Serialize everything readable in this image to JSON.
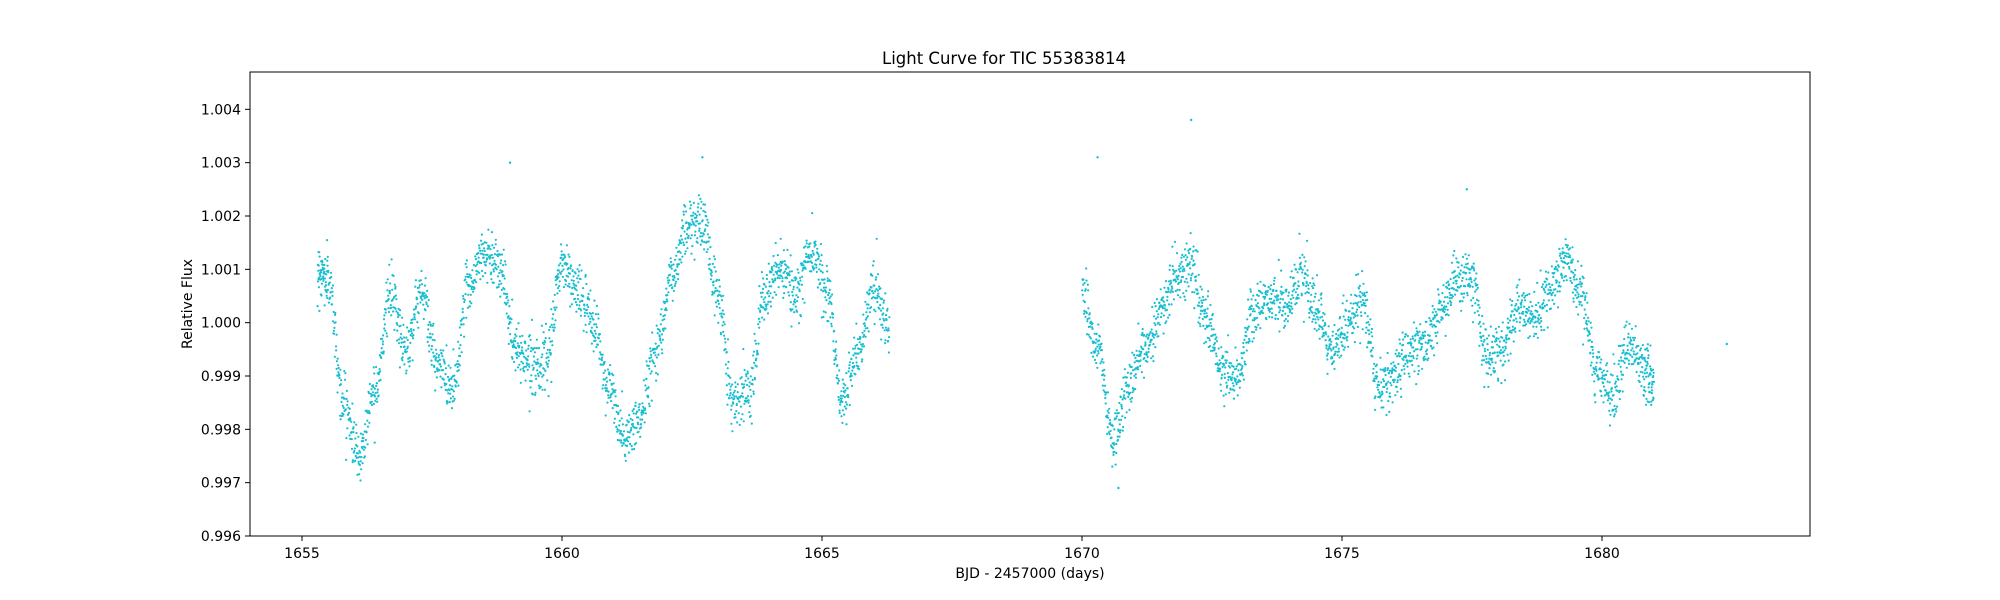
{
  "chart_data": {
    "type": "scatter",
    "title": "Light Curve for TIC 55383814",
    "xlabel": "BJD - 2457000 (days)",
    "ylabel": "Relative Flux",
    "xlim": [
      1654,
      1684
    ],
    "ylim": [
      0.996,
      1.0047
    ],
    "xticks": [
      1655,
      1660,
      1665,
      1670,
      1675,
      1680
    ],
    "xtick_labels": [
      "1655",
      "1660",
      "1665",
      "1670",
      "1675",
      "1680"
    ],
    "yticks": [
      0.996,
      0.997,
      0.998,
      0.999,
      1.0,
      1.001,
      1.002,
      1.003,
      1.004
    ],
    "ytick_labels": [
      "0.996",
      "0.997",
      "0.998",
      "0.999",
      "1.000",
      "1.001",
      "1.002",
      "1.003",
      "1.004"
    ],
    "grid": false,
    "legend": "none",
    "marker_color": "#17becf",
    "series": [
      {
        "trend_x": [
          1655.3,
          1655.5,
          1655.8,
          1656.1,
          1656.4,
          1656.7,
          1657.0,
          1657.3,
          1657.6,
          1657.9,
          1658.2,
          1658.5,
          1658.8,
          1659.1,
          1659.4,
          1659.7,
          1660.0,
          1660.3,
          1660.6,
          1660.9,
          1661.2,
          1661.5,
          1661.8,
          1662.1,
          1662.4,
          1662.7,
          1663.0,
          1663.3,
          1663.6,
          1663.9,
          1664.2,
          1664.5,
          1664.8,
          1665.1,
          1665.4,
          1665.7,
          1666.0,
          1666.3
        ],
        "trend_y": [
          1.001,
          1.0008,
          0.9985,
          0.9975,
          0.9988,
          1.0005,
          0.9995,
          1.0006,
          0.9992,
          0.9988,
          1.0007,
          1.0013,
          1.0011,
          0.9995,
          0.9993,
          0.9992,
          1.0011,
          1.0006,
          1.0,
          0.9988,
          0.9978,
          0.9982,
          0.9995,
          1.0008,
          1.0018,
          1.0019,
          1.0005,
          0.9985,
          0.9988,
          1.0005,
          1.001,
          1.0005,
          1.0014,
          1.0006,
          0.9985,
          0.9995,
          1.0007,
          0.9998
        ],
        "scatter_sigma": 0.00025
      },
      {
        "trend_x": [
          1670.0,
          1670.3,
          1670.6,
          1670.9,
          1671.2,
          1671.5,
          1671.8,
          1672.1,
          1672.4,
          1672.7,
          1673.0,
          1673.3,
          1673.6,
          1673.9,
          1674.2,
          1674.5,
          1674.8,
          1675.1,
          1675.4,
          1675.7,
          1676.0,
          1676.3,
          1676.6,
          1676.9,
          1677.2,
          1677.5,
          1677.8,
          1678.1,
          1678.4,
          1678.7,
          1679.0,
          1679.3,
          1679.6,
          1679.9,
          1680.2,
          1680.5,
          1680.8,
          1681.0
        ],
        "trend_y": [
          1.0005,
          0.9995,
          0.9978,
          0.9988,
          0.9995,
          1.0002,
          1.0008,
          1.0011,
          1.0,
          0.9991,
          0.999,
          1.0002,
          1.0005,
          1.0003,
          1.0009,
          1.0002,
          0.9994,
          1.0,
          1.0004,
          0.9988,
          0.999,
          0.9995,
          0.9996,
          1.0002,
          1.0008,
          1.0008,
          0.9993,
          0.9995,
          1.0003,
          1.0001,
          1.0005,
          1.0012,
          1.0005,
          0.999,
          0.9987,
          0.9995,
          0.9992,
          0.9988
        ],
        "scatter_sigma": 0.00025
      }
    ],
    "outliers": [
      {
        "x": 1659.0,
        "y": 1.003
      },
      {
        "x": 1662.7,
        "y": 1.0031
      },
      {
        "x": 1670.3,
        "y": 1.0031
      },
      {
        "x": 1672.1,
        "y": 1.0038
      },
      {
        "x": 1677.4,
        "y": 1.0025
      },
      {
        "x": 1670.7,
        "y": 0.9969
      },
      {
        "x": 1682.4,
        "y": 0.9996
      }
    ]
  }
}
